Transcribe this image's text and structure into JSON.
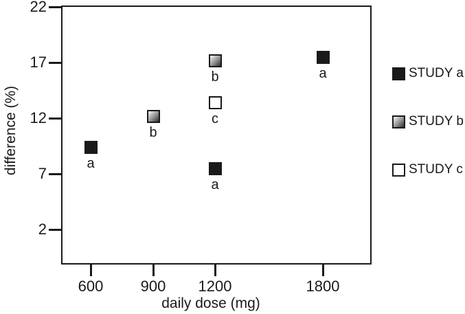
{
  "chart_data": {
    "type": "scatter",
    "title": "",
    "xlabel": "daily dose (mg)",
    "ylabel": "difference (%)",
    "x_tick_values": [
      600,
      900,
      1200,
      1800
    ],
    "y_tick_values": [
      22,
      17,
      12,
      7,
      2
    ],
    "ylim": [
      -1,
      22
    ],
    "grid": false,
    "legend_position": "right-outside",
    "series": [
      {
        "name": "STUDY a",
        "marker": "filled-black-square",
        "points": [
          {
            "x": 600,
            "y": 9.4,
            "point_label": "a"
          },
          {
            "x": 1200,
            "y": 7.5,
            "point_label": "a"
          },
          {
            "x": 1800,
            "y": 17.5,
            "point_label": "a"
          }
        ]
      },
      {
        "name": "STUDY b",
        "marker": "gradient-gray-square",
        "points": [
          {
            "x": 900,
            "y": 12.2,
            "point_label": "b"
          },
          {
            "x": 1200,
            "y": 17.2,
            "point_label": "b"
          }
        ]
      },
      {
        "name": "STUDY c",
        "marker": "open-white-square",
        "points": [
          {
            "x": 1200,
            "y": 13.4,
            "point_label": "c"
          }
        ]
      }
    ],
    "colors": {
      "axis": "#1a1a1a",
      "text": "#1a1a1a",
      "marker_black": "#1a1a1a",
      "gradient_light": "#f8f8f8",
      "gradient_dark": "#2e2e2e",
      "open_fill": "#ffffff",
      "background": "#ffffff"
    }
  },
  "legend": {
    "items": [
      {
        "label": "STUDY a",
        "marker": "filled-black-square"
      },
      {
        "label": "STUDY b",
        "marker": "gradient-gray-square"
      },
      {
        "label": "STUDY c",
        "marker": "open-white-square"
      }
    ]
  }
}
